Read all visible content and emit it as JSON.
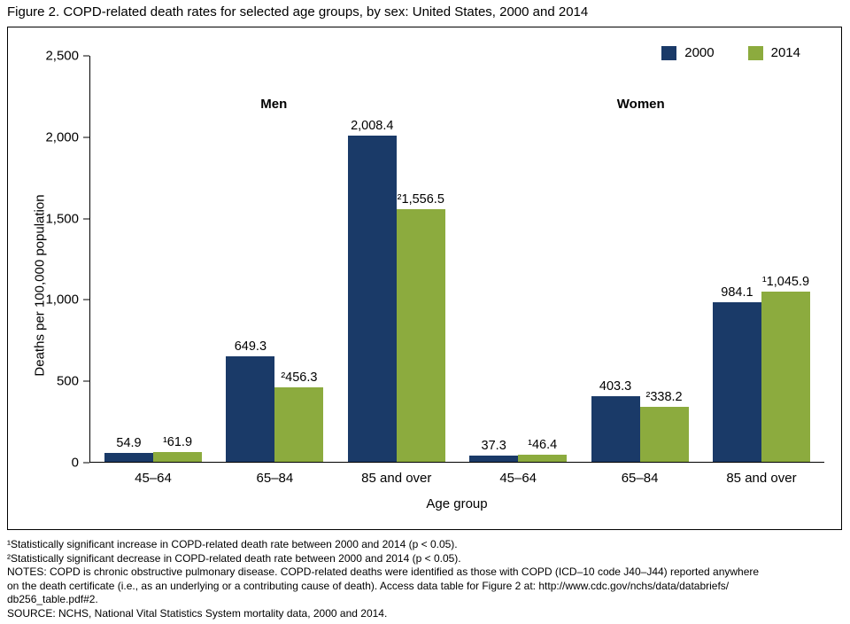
{
  "title": "Figure 2. COPD-related death rates for selected age groups, by sex: United States, 2000 and 2014",
  "chart_data": {
    "type": "bar",
    "title": "COPD-related death rates for selected age groups, by sex: United States, 2000 and 2014",
    "xlabel": "Age group",
    "ylabel": "Deaths per 100,000 population",
    "ylim": [
      0,
      2500
    ],
    "yticks": [
      0,
      500,
      1000,
      1500,
      2000,
      2500
    ],
    "ytick_labels": [
      "0",
      "500",
      "1,000",
      "1,500",
      "2,000",
      "2,500"
    ],
    "grid": false,
    "legend_position": "top-right",
    "group_sections": [
      "Men",
      "Women"
    ],
    "categories": [
      "45–64",
      "65–84",
      "85 and over",
      "45–64",
      "65–84",
      "85 and over"
    ],
    "series": [
      {
        "name": "2000",
        "color": "#1a3a68",
        "values": [
          54.9,
          649.3,
          2008.4,
          37.3,
          403.3,
          984.1
        ],
        "labels": [
          "54.9",
          "649.3",
          "2,008.4",
          "37.3",
          "403.3",
          "984.1"
        ]
      },
      {
        "name": "2014",
        "color": "#8cab3e",
        "values": [
          61.9,
          456.3,
          1556.5,
          46.4,
          338.2,
          1045.9
        ],
        "labels": [
          "¹61.9",
          "²456.3",
          "²1,556.5",
          "¹46.4",
          "²338.2",
          "¹1,045.9"
        ]
      }
    ]
  },
  "footnotes": [
    "¹Statistically significant increase in COPD-related death rate between 2000 and 2014 (p < 0.05).",
    "²Statistically significant decrease in COPD-related death rate between 2000 and 2014 (p < 0.05).",
    "NOTES: COPD is chronic obstructive pulmonary disease. COPD-related deaths were identified as those with COPD (ICD–10 code J40–J44) reported anywhere",
    "on the death certificate (i.e., as an underlying or a contributing cause of death). Access data table for Figure 2 at: http://www.cdc.gov/nchs/data/databriefs/",
    "db256_table.pdf#2.",
    "SOURCE: NCHS, National Vital Statistics System mortality data, 2000 and 2014."
  ]
}
